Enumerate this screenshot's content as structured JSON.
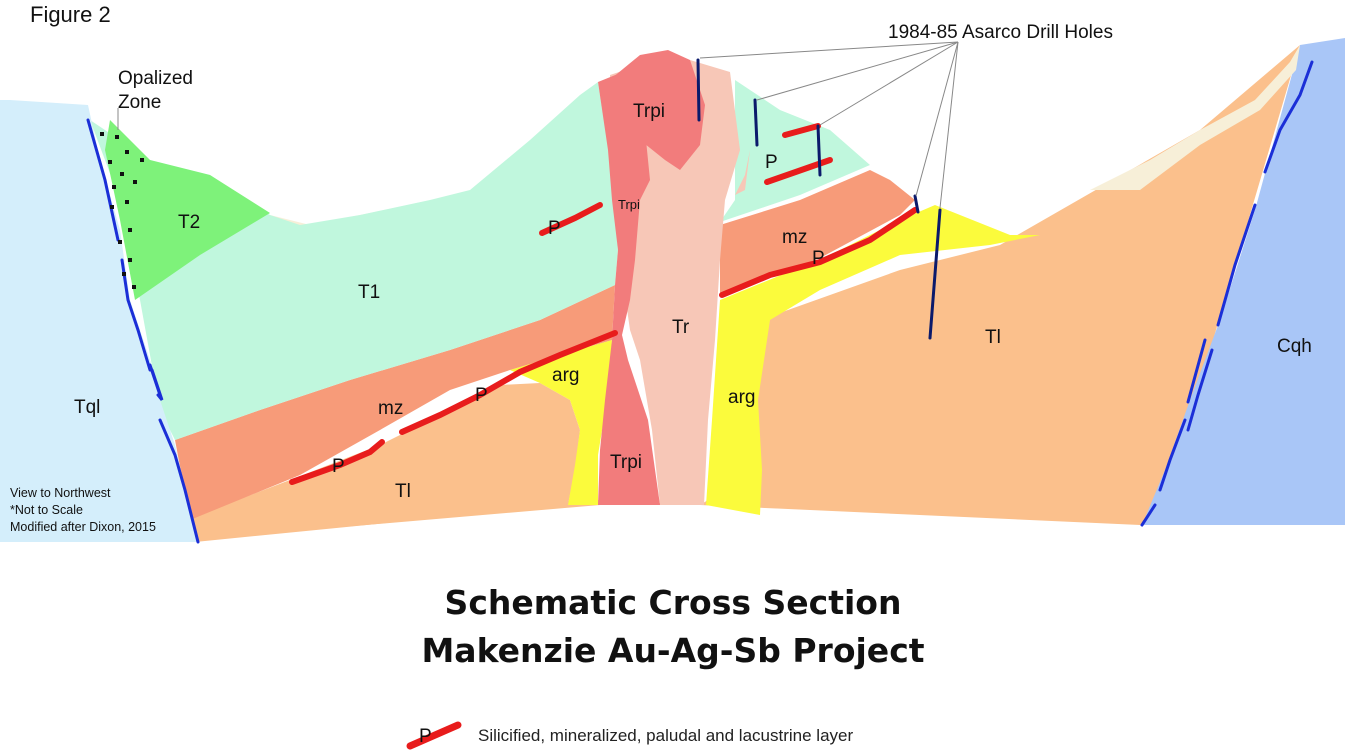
{
  "figure_label": "Figure 2",
  "annotation": {
    "opalized_line1": "Opalized",
    "opalized_line2": "Zone",
    "drill_holes": "1984-85 Asarco Drill Holes"
  },
  "units": {
    "tql": "Tql",
    "t2": "T2",
    "t1": "T1",
    "trpi": "Trpi",
    "trpi_small": "Trpi",
    "tr": "Tr",
    "mz": "mz",
    "arg": "arg",
    "tl": "Tl",
    "cqh": "Cqh",
    "p": "P"
  },
  "notes": {
    "view": "View to Northwest",
    "scale": "*Not to Scale",
    "source": "Modified after Dixon, 2015"
  },
  "title": {
    "line1": "Schematic Cross Section",
    "line2": "Makenzie Au-Ag-Sb Project"
  },
  "legend": {
    "symbol": "P",
    "label": "Silicified, mineralized, paludal and lacustrine layer"
  },
  "colors": {
    "tql": "#d4eefb",
    "t2": "#7ef27a",
    "t1": "#c0f7dd",
    "trpi": "#f27c7c",
    "tr": "#f7c7b7",
    "mz": "#f79b79",
    "arg": "#fbfb3c",
    "tl": "#fbc08c",
    "cqh": "#a9c6f7",
    "cover": "#f7efd8",
    "fault": "#1b2fd7",
    "drill_hole": "#0b1a6b",
    "p_layer": "#e81c1c"
  }
}
